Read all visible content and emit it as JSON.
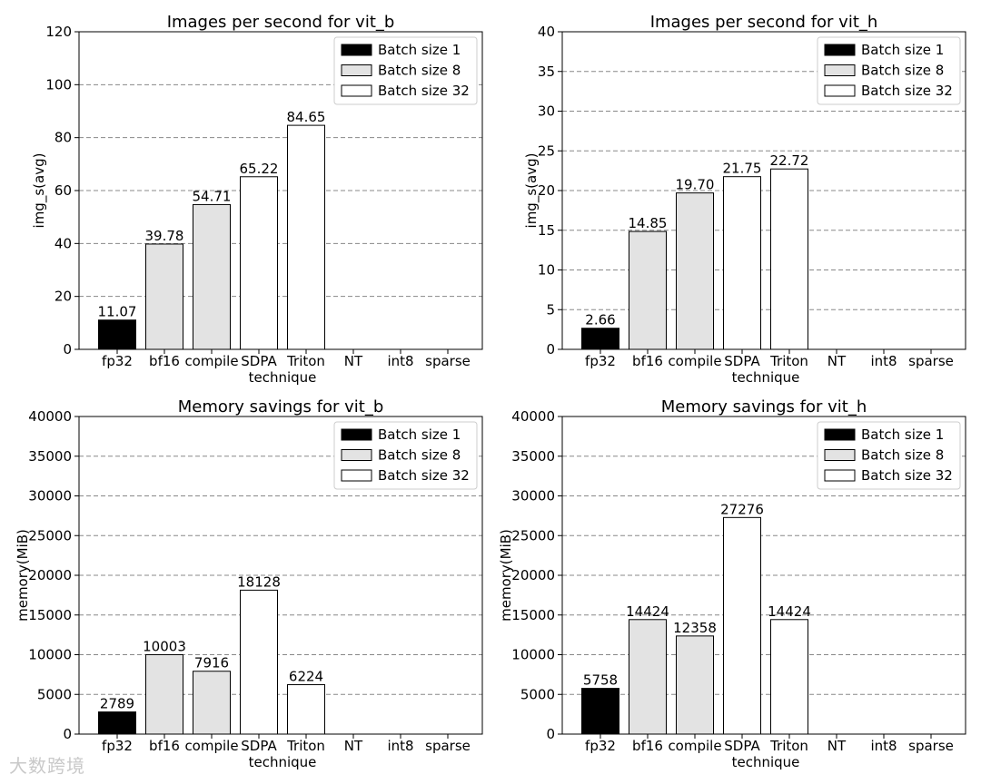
{
  "chart_data": [
    {
      "type": "bar",
      "title": "Images per second for vit_b",
      "xlabel": "technique",
      "ylabel": "img_s(avg)",
      "ylim": [
        0,
        120
      ],
      "yticks": [
        0,
        20,
        40,
        60,
        80,
        100,
        120
      ],
      "categories": [
        "fp32",
        "bf16",
        "compile",
        "SDPA",
        "Triton",
        "NT",
        "int8",
        "sparse"
      ],
      "values": [
        11.07,
        39.78,
        54.71,
        65.22,
        84.65,
        null,
        null,
        null
      ],
      "labels": [
        "11.07",
        "39.78",
        "54.71",
        "65.22",
        "84.65",
        "",
        "",
        ""
      ],
      "batch": [
        1,
        8,
        8,
        32,
        32,
        null,
        null,
        null
      ],
      "legend": [
        "Batch size 1",
        "Batch size 8",
        "Batch size 32"
      ],
      "legend_position": "top-right",
      "grid": "y-dashed"
    },
    {
      "type": "bar",
      "title": "Images per second for vit_h",
      "xlabel": "technique",
      "ylabel": "img_s(avg)",
      "ylim": [
        0,
        40
      ],
      "yticks": [
        0,
        5,
        10,
        15,
        20,
        25,
        30,
        35,
        40
      ],
      "categories": [
        "fp32",
        "bf16",
        "compile",
        "SDPA",
        "Triton",
        "NT",
        "int8",
        "sparse"
      ],
      "values": [
        2.66,
        14.85,
        19.7,
        21.75,
        22.72,
        null,
        null,
        null
      ],
      "labels": [
        "2.66",
        "14.85",
        "19.70",
        "21.75",
        "22.72",
        "",
        "",
        ""
      ],
      "batch": [
        1,
        8,
        8,
        32,
        32,
        null,
        null,
        null
      ],
      "legend": [
        "Batch size 1",
        "Batch size 8",
        "Batch size 32"
      ],
      "legend_position": "top-right",
      "grid": "y-dashed"
    },
    {
      "type": "bar",
      "title": "Memory savings for vit_b",
      "xlabel": "technique",
      "ylabel": "memory(MiB)",
      "ylim": [
        0,
        40000
      ],
      "yticks": [
        0,
        5000,
        10000,
        15000,
        20000,
        25000,
        30000,
        35000,
        40000
      ],
      "categories": [
        "fp32",
        "bf16",
        "compile",
        "SDPA",
        "Triton",
        "NT",
        "int8",
        "sparse"
      ],
      "values": [
        2789,
        10003,
        7916,
        18128,
        6224,
        null,
        null,
        null
      ],
      "labels": [
        "2789",
        "10003",
        "7916",
        "18128",
        "6224",
        "",
        "",
        ""
      ],
      "batch": [
        1,
        8,
        8,
        32,
        32,
        null,
        null,
        null
      ],
      "legend": [
        "Batch size 1",
        "Batch size 8",
        "Batch size 32"
      ],
      "legend_position": "top-right",
      "grid": "y-dashed"
    },
    {
      "type": "bar",
      "title": "Memory savings for vit_h",
      "xlabel": "technique",
      "ylabel": "memory(MiB)",
      "ylim": [
        0,
        40000
      ],
      "yticks": [
        0,
        5000,
        10000,
        15000,
        20000,
        25000,
        30000,
        35000,
        40000
      ],
      "categories": [
        "fp32",
        "bf16",
        "compile",
        "SDPA",
        "Triton",
        "NT",
        "int8",
        "sparse"
      ],
      "values": [
        5758,
        14424,
        12358,
        27276,
        14424,
        null,
        null,
        null
      ],
      "labels": [
        "5758",
        "14424",
        "12358",
        "27276",
        "14424",
        "",
        "",
        ""
      ],
      "batch": [
        1,
        8,
        8,
        32,
        32,
        null,
        null,
        null
      ],
      "legend": [
        "Batch size 1",
        "Batch size 8",
        "Batch size 32"
      ],
      "legend_position": "top-right",
      "grid": "y-dashed"
    }
  ],
  "colors": {
    "batch_1": "#000000",
    "batch_8": "#e3e3e3",
    "batch_32": "#ffffff",
    "grid": "#888888"
  },
  "watermark": "大数跨境"
}
